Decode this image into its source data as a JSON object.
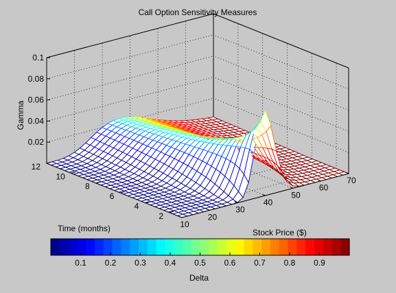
{
  "window": {
    "background": "#c8c8c8"
  },
  "chart_data": {
    "type": "surface",
    "title": "Call Option Sensitivity Measures",
    "xlabel": "Stock Price ($)",
    "ylabel": "Time (months)",
    "zlabel": "Gamma",
    "xlim": [
      10,
      70
    ],
    "ylim": [
      1,
      12
    ],
    "zlim": [
      0,
      0.1
    ],
    "xticks": [
      "10",
      "20",
      "30",
      "40",
      "50",
      "60",
      "70"
    ],
    "yticks": [
      "2",
      "4",
      "6",
      "8",
      "10",
      "12"
    ],
    "zticks": [
      "0.02",
      "0.04",
      "0.06",
      "0.08",
      "0.1"
    ],
    "grid": true,
    "colormap": "jet",
    "strike_price": 40,
    "peak_gamma": 0.08,
    "colorbar": {
      "label": "Delta",
      "ticks": [
        "0.1",
        "0.2",
        "0.3",
        "0.4",
        "0.5",
        "0.6",
        "0.7",
        "0.8",
        "0.9"
      ],
      "range": [
        0,
        1
      ],
      "steps": 34
    }
  }
}
